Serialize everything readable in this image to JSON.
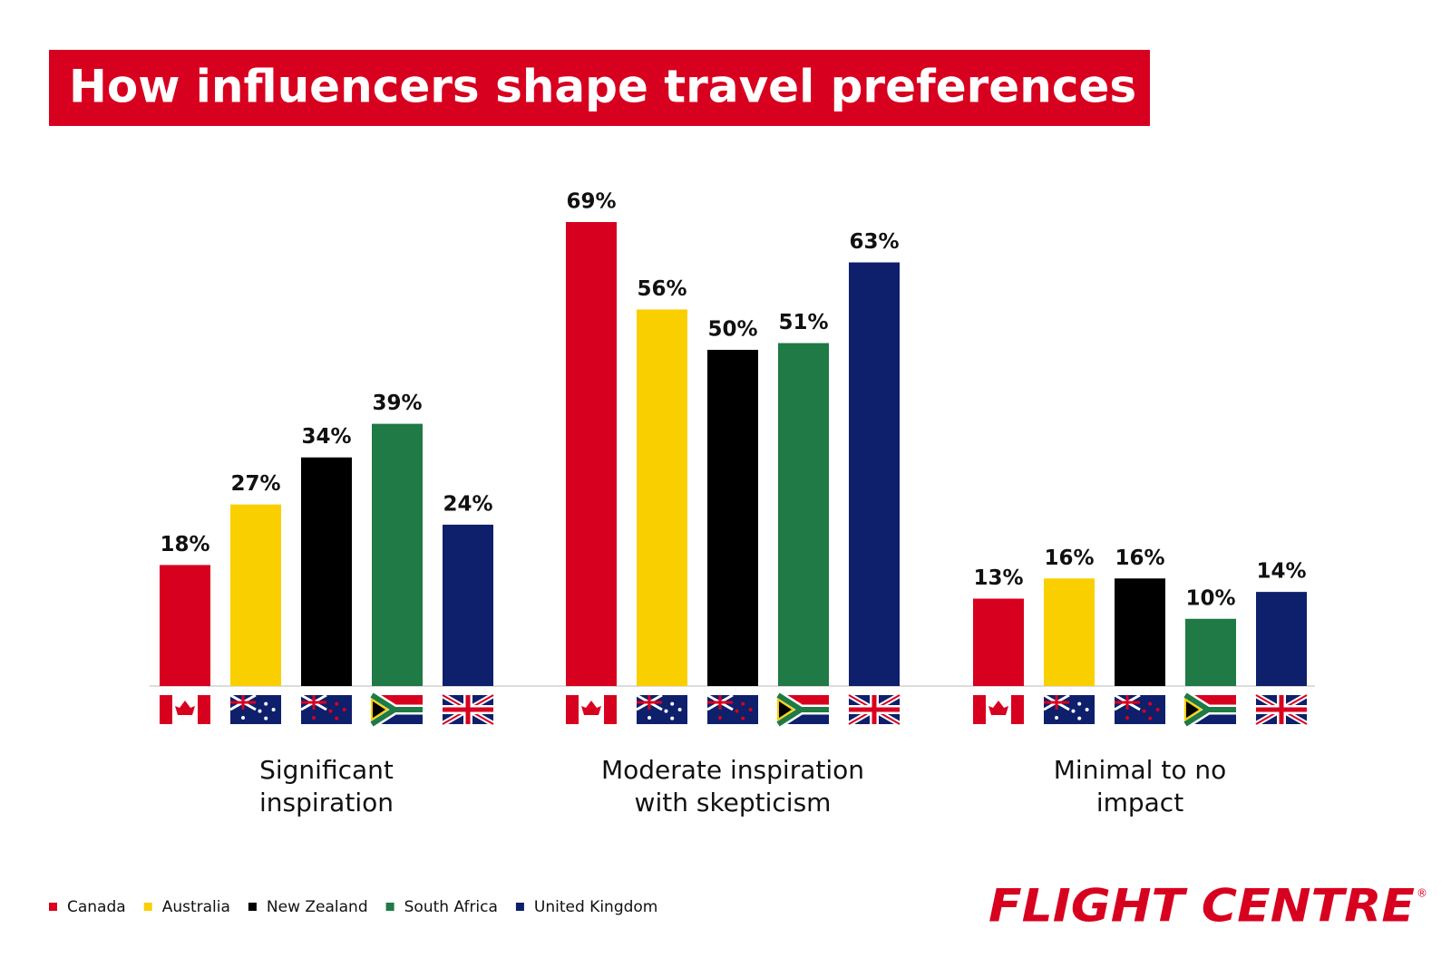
{
  "chart_data": {
    "type": "bar",
    "title": "How influencers shape travel preferences",
    "categories": [
      "Significant\ninspiration",
      "Moderate inspiration\nwith skepticism",
      "Minimal to no\nimpact"
    ],
    "series": [
      {
        "name": "Canada",
        "color": "#d8001f",
        "values": [
          18,
          69,
          13
        ],
        "value_labels": [
          "18%",
          "69%",
          "13%"
        ]
      },
      {
        "name": "Australia",
        "color": "#f9cf00",
        "values": [
          27,
          56,
          16
        ],
        "value_labels": [
          "27%",
          "56%",
          "16%"
        ]
      },
      {
        "name": "New Zealand",
        "color": "#000000",
        "values": [
          34,
          50,
          16
        ],
        "value_labels": [
          "34%",
          "50%",
          "16%"
        ]
      },
      {
        "name": "South Africa",
        "color": "#1f7a45",
        "values": [
          39,
          51,
          10
        ],
        "value_labels": [
          "39%",
          "51%",
          "10%"
        ]
      },
      {
        "name": "United Kingdom",
        "color": "#0e1f6b",
        "values": [
          24,
          63,
          14
        ],
        "value_labels": [
          "24%",
          "63%",
          "14%"
        ]
      }
    ],
    "logo": "FLIGHT CENTRE",
    "logo_mark": "®"
  }
}
